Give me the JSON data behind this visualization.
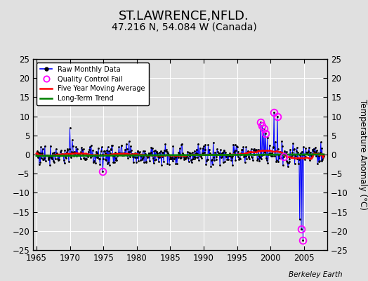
{
  "title": "ST.LAWRENCE,NFLD.",
  "subtitle": "47.216 N, 54.084 W (Canada)",
  "ylabel": "Temperature Anomaly (°C)",
  "watermark": "Berkeley Earth",
  "xlim": [
    1964.5,
    2008.5
  ],
  "ylim": [
    -25,
    25
  ],
  "yticks": [
    -25,
    -20,
    -15,
    -10,
    -5,
    0,
    5,
    10,
    15,
    20,
    25
  ],
  "xticks": [
    1965,
    1970,
    1975,
    1980,
    1985,
    1990,
    1995,
    2000,
    2005
  ],
  "bg_color": "#e0e0e0",
  "plot_bg_color": "#e0e0e0",
  "grid_color": "white",
  "raw_color": "blue",
  "ma_color": "red",
  "trend_color": "green",
  "qc_color": "magenta",
  "title_fontsize": 13,
  "subtitle_fontsize": 10
}
